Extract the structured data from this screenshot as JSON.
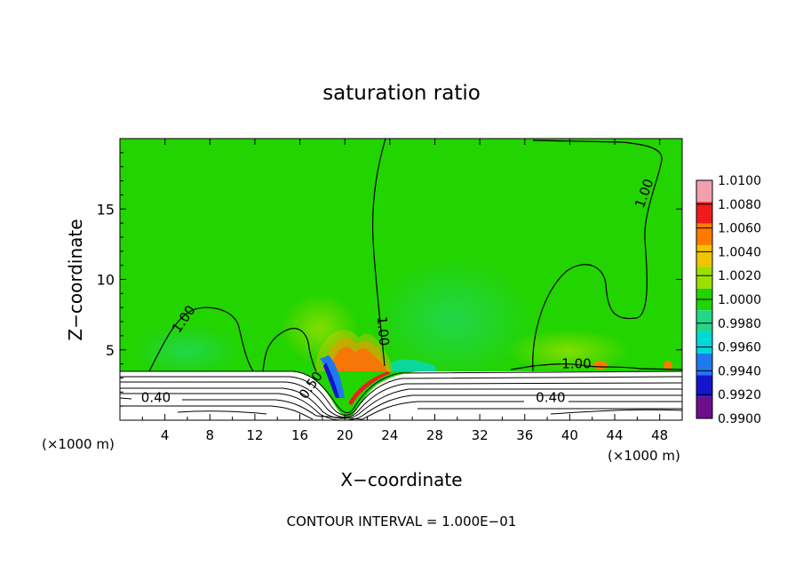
{
  "chart_data": {
    "type": "heatmap",
    "title": "saturation ratio",
    "xlabel": "X−coordinate",
    "ylabel": "Z−coordinate",
    "x_unit_left": "(×1000 m)",
    "x_unit_right": "(×1000 m)",
    "xlim": [
      0,
      50
    ],
    "ylim": [
      0,
      20
    ],
    "xticks": [
      4,
      8,
      12,
      16,
      20,
      24,
      28,
      32,
      36,
      40,
      44,
      48
    ],
    "yticks": [
      5,
      10,
      15
    ],
    "footer": "CONTOUR INTERVAL = 1.000E−01",
    "colorbar": {
      "levels": [
        "1.0100",
        "1.0080",
        "1.0060",
        "1.0040",
        "1.0020",
        "1.0000",
        "0.9980",
        "0.9960",
        "0.9940",
        "0.9920",
        "0.9900"
      ],
      "colors": [
        "#f2a0b0",
        "#ee1c1c",
        "#ff7a00",
        "#f2c300",
        "#9be000",
        "#22d400",
        "#22d888",
        "#00d8d8",
        "#1e78f0",
        "#1414cc",
        "#6e0e8c"
      ]
    },
    "contour_labels": [
      {
        "text": "1.00",
        "x": 6.0,
        "z": 7.0,
        "angle": -55
      },
      {
        "text": "1.00",
        "x": 23.0,
        "z": 6.3,
        "angle": 85
      },
      {
        "text": "1.00",
        "x": 47.0,
        "z": 16.0,
        "angle": -70
      },
      {
        "text": "1.00",
        "x": 40.6,
        "z": 3.7,
        "angle": 0
      },
      {
        "text": "0.40",
        "x": 3.2,
        "z": 1.3,
        "angle": 0
      },
      {
        "text": "0.40",
        "x": 38.3,
        "z": 1.3,
        "angle": 0
      },
      {
        "text": "0.50",
        "x": 17.3,
        "z": 2.3,
        "angle": -55
      }
    ],
    "field_summary": {
      "background_value": 1.0,
      "maximum_value": 1.01,
      "minimum_value": 0.99,
      "boundary_layer_top_z": 3.7
    }
  }
}
